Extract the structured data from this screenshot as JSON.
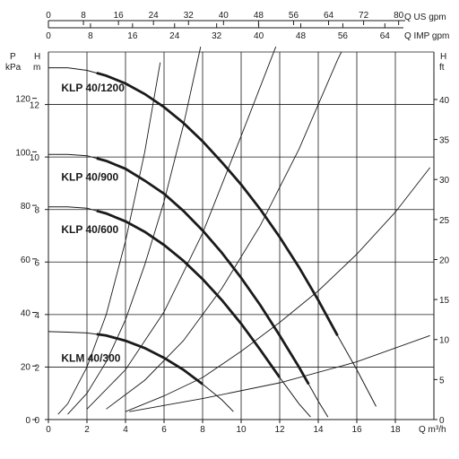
{
  "chart_data": {
    "type": "line",
    "x_axis": {
      "label": "Q m³/h",
      "ticks": [
        "0",
        "2",
        "4",
        "6",
        "8",
        "10",
        "12",
        "14",
        "16",
        "18"
      ],
      "range": [
        0,
        20
      ]
    },
    "y_axis_head_m": {
      "label": "H m",
      "label_top": "H",
      "label_unit": "m",
      "ticks": [
        "0",
        "2",
        "4",
        "6",
        "8",
        "10",
        "12"
      ],
      "range": [
        0,
        14
      ]
    },
    "y_axis_pressure_kpa": {
      "label_top": "P",
      "label_unit": "kPa",
      "ticks": [
        "0",
        "20",
        "40",
        "60",
        "80",
        "100",
        "120"
      ],
      "values": [
        0,
        20,
        40,
        60,
        80,
        100,
        120
      ]
    },
    "y_axis_head_ft": {
      "label_top": "H",
      "label_unit": "ft",
      "ticks": [
        "0",
        "5",
        "10",
        "15",
        "20",
        "25",
        "30",
        "35",
        "40"
      ],
      "values": [
        0,
        5,
        10,
        15,
        20,
        25,
        30,
        35,
        40
      ]
    },
    "top_axis_us_gpm": {
      "label": "Q US gpm",
      "ticks": [
        "0",
        "8",
        "16",
        "24",
        "32",
        "40",
        "48",
        "56",
        "64",
        "72",
        "80"
      ],
      "values": [
        0,
        8,
        16,
        24,
        32,
        40,
        48,
        56,
        64,
        72,
        80
      ]
    },
    "top_axis_imp_gpm": {
      "label": "Q IMP gpm",
      "ticks": [
        "0",
        "8",
        "16",
        "24",
        "32",
        "40",
        "48",
        "56",
        "64"
      ],
      "values": [
        0,
        8,
        16,
        24,
        32,
        40,
        48,
        56,
        64
      ]
    },
    "grid": true,
    "series": [
      {
        "name": "KLP 40/1200",
        "shutoff_head": 13.4,
        "points": [
          [
            0,
            13.4
          ],
          [
            1,
            13.4
          ],
          [
            2,
            13.3
          ],
          [
            3,
            13.1
          ],
          [
            4,
            12.8
          ],
          [
            5,
            12.4
          ],
          [
            6,
            11.9
          ],
          [
            7,
            11.3
          ],
          [
            8,
            10.6
          ],
          [
            9,
            9.8
          ],
          [
            10,
            8.95
          ],
          [
            11,
            8.0
          ],
          [
            12,
            6.95
          ],
          [
            13,
            5.8
          ],
          [
            14,
            4.55
          ],
          [
            15,
            3.2
          ],
          [
            16,
            1.9
          ],
          [
            17,
            0.5
          ]
        ],
        "thick_range": [
          2.5,
          15
        ]
      },
      {
        "name": "KLP 40/900",
        "shutoff_head": 10.1,
        "points": [
          [
            0,
            10.1
          ],
          [
            1,
            10.1
          ],
          [
            2,
            10.05
          ],
          [
            3,
            9.85
          ],
          [
            4,
            9.55
          ],
          [
            5,
            9.1
          ],
          [
            6,
            8.6
          ],
          [
            7,
            7.95
          ],
          [
            8,
            7.2
          ],
          [
            9,
            6.35
          ],
          [
            10,
            5.4
          ],
          [
            11,
            4.35
          ],
          [
            12,
            3.2
          ],
          [
            13,
            2.0
          ],
          [
            14,
            0.7
          ],
          [
            14.5,
            0.1
          ]
        ],
        "thick_range": [
          2.5,
          13.5
        ]
      },
      {
        "name": "KLP 40/600",
        "shutoff_head": 8.1,
        "points": [
          [
            0,
            8.1
          ],
          [
            1,
            8.1
          ],
          [
            2,
            8.05
          ],
          [
            3,
            7.85
          ],
          [
            4,
            7.55
          ],
          [
            5,
            7.15
          ],
          [
            6,
            6.65
          ],
          [
            7,
            6.05
          ],
          [
            8,
            5.35
          ],
          [
            9,
            4.55
          ],
          [
            10,
            3.65
          ],
          [
            11,
            2.65
          ],
          [
            12,
            1.6
          ],
          [
            13,
            0.6
          ],
          [
            13.6,
            0.1
          ]
        ],
        "thick_range": [
          2.5,
          12
        ]
      },
      {
        "name": "KLM 40/300",
        "shutoff_head": 3.35,
        "points": [
          [
            0,
            3.35
          ],
          [
            1,
            3.33
          ],
          [
            2,
            3.3
          ],
          [
            3,
            3.2
          ],
          [
            4,
            3.0
          ],
          [
            5,
            2.72
          ],
          [
            6,
            2.35
          ],
          [
            7,
            1.9
          ],
          [
            8,
            1.35
          ],
          [
            9,
            0.75
          ],
          [
            9.6,
            0.3
          ]
        ],
        "thick_range": [
          2.5,
          8
        ]
      }
    ],
    "system_curves": [
      {
        "points": [
          [
            0.5,
            0.2
          ],
          [
            1,
            0.6
          ],
          [
            2,
            2.0
          ],
          [
            3,
            4.0
          ],
          [
            4,
            6.8
          ],
          [
            5,
            10.2
          ],
          [
            5.8,
            13.6
          ]
        ]
      },
      {
        "points": [
          [
            1,
            0.2
          ],
          [
            2,
            1.0
          ],
          [
            3,
            2.2
          ],
          [
            4,
            3.8
          ],
          [
            5,
            5.9
          ],
          [
            6,
            8.3
          ],
          [
            7,
            11.2
          ],
          [
            7.9,
            14.2
          ]
        ]
      },
      {
        "points": [
          [
            2,
            0.4
          ],
          [
            4,
            1.9
          ],
          [
            6,
            4.1
          ],
          [
            8,
            7.1
          ],
          [
            10,
            10.8
          ],
          [
            11.8,
            14.2
          ]
        ]
      },
      {
        "points": [
          [
            3,
            0.4
          ],
          [
            5,
            1.5
          ],
          [
            7,
            3.0
          ],
          [
            9,
            5.0
          ],
          [
            11,
            7.4
          ],
          [
            13,
            10.3
          ],
          [
            15,
            13.7
          ],
          [
            15.2,
            14.0
          ]
        ]
      },
      {
        "points": [
          [
            4,
            0.3
          ],
          [
            6,
            0.9
          ],
          [
            8,
            1.6
          ],
          [
            10,
            2.6
          ],
          [
            12,
            3.7
          ],
          [
            14,
            4.9
          ],
          [
            16,
            6.3
          ],
          [
            18,
            7.9
          ],
          [
            19.8,
            9.6
          ]
        ]
      },
      {
        "points": [
          [
            4.2,
            0.3
          ],
          [
            8,
            0.8
          ],
          [
            12,
            1.4
          ],
          [
            16,
            2.2
          ],
          [
            19.8,
            3.2
          ]
        ]
      }
    ]
  }
}
